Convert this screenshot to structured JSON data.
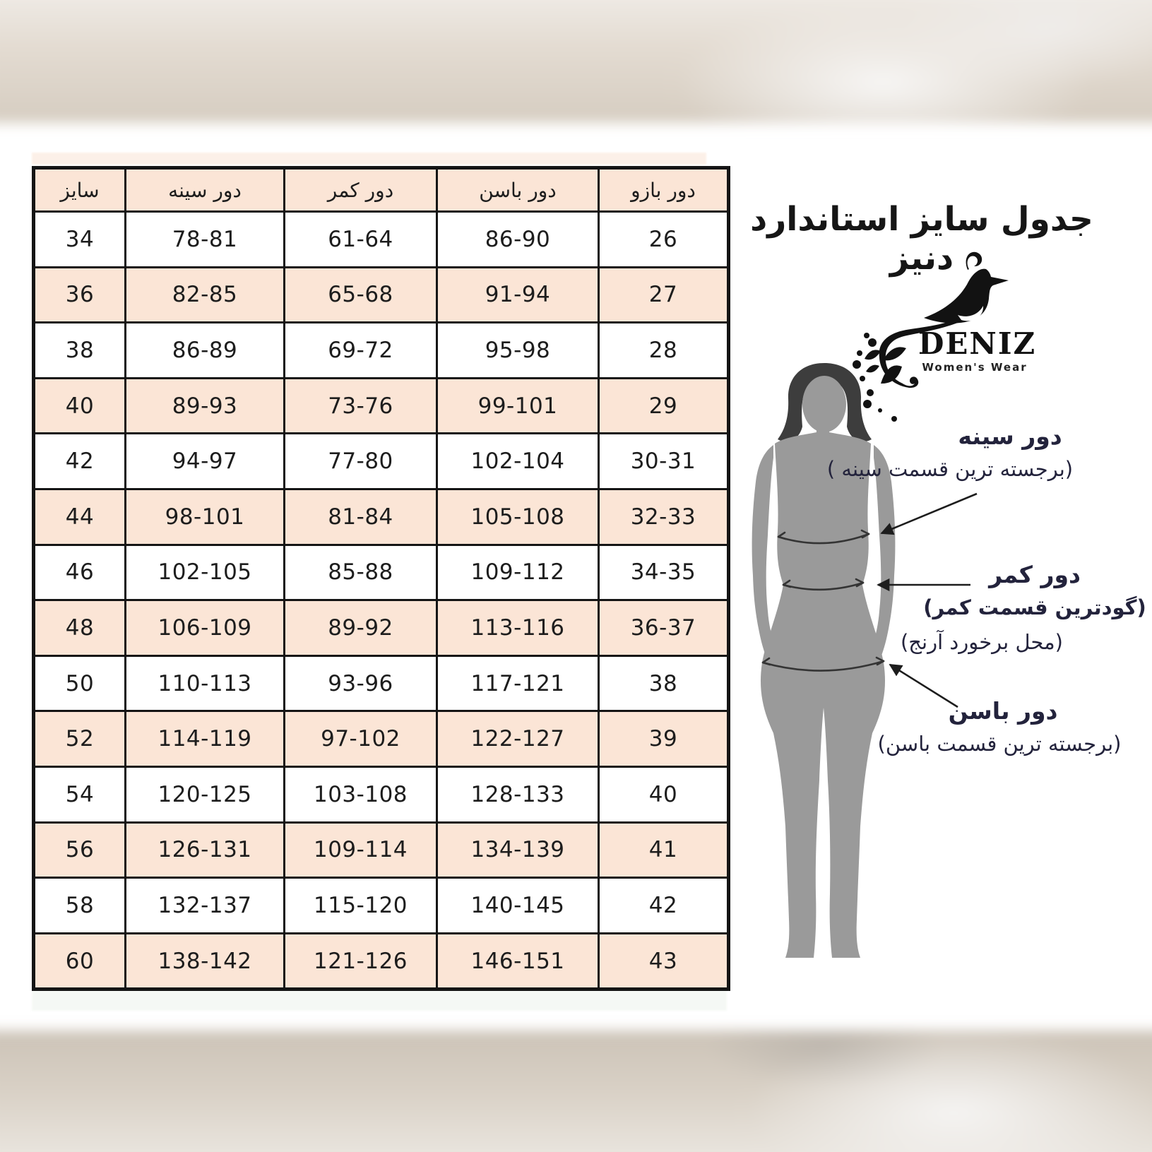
{
  "page": {
    "title": "جدول سایز استاندارد دنیز"
  },
  "brand": {
    "name": "DENIZ",
    "tagline": "Women's Wear"
  },
  "table": {
    "headers": [
      "سایز",
      "دور سینه",
      "دور کمر",
      "دور باسن",
      "دور بازو"
    ],
    "rows": [
      [
        "34",
        "78-81",
        "61-64",
        "86-90",
        "26"
      ],
      [
        "36",
        "82-85",
        "65-68",
        "91-94",
        "27"
      ],
      [
        "38",
        "86-89",
        "69-72",
        "95-98",
        "28"
      ],
      [
        "40",
        "89-93",
        "73-76",
        "99-101",
        "29"
      ],
      [
        "42",
        "94-97",
        "77-80",
        "102-104",
        "30-31"
      ],
      [
        "44",
        "98-101",
        "81-84",
        "105-108",
        "32-33"
      ],
      [
        "46",
        "102-105",
        "85-88",
        "109-112",
        "34-35"
      ],
      [
        "48",
        "106-109",
        "89-92",
        "113-116",
        "36-37"
      ],
      [
        "50",
        "110-113",
        "93-96",
        "117-121",
        "38"
      ],
      [
        "52",
        "114-119",
        "97-102",
        "122-127",
        "39"
      ],
      [
        "54",
        "120-125",
        "103-108",
        "128-133",
        "40"
      ],
      [
        "56",
        "126-131",
        "109-114",
        "134-139",
        "41"
      ],
      [
        "58",
        "132-137",
        "115-120",
        "140-145",
        "42"
      ],
      [
        "60",
        "138-142",
        "121-126",
        "146-151",
        "43"
      ]
    ]
  },
  "annotations": {
    "bust": {
      "label": "دور سینه",
      "note": "(برجسته ترین قسمت سینه )"
    },
    "waist": {
      "label": "دور کمر",
      "note1": "(گودترین قسمت کمر)",
      "note2": "(محل برخورد آرنج)"
    },
    "hip": {
      "label": "دور باسن",
      "note": "(برجسته ترین قسمت باسن)"
    }
  },
  "colors": {
    "row_alt": "#fbe5d6",
    "table_border": "#151515",
    "silhouette": "#9a9a9a",
    "hair": "#3d3d3d",
    "annotation_text": "#23233c"
  }
}
